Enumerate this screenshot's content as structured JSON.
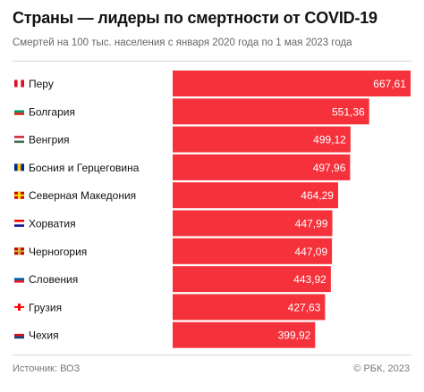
{
  "title": "Страны — лидеры по смертности от COVID-19",
  "subtitle": "Смертей на 100 тыс. населения с января 2020 года по 1 мая 2023 года",
  "source": "Источник: ВОЗ",
  "copyright": "© РБК, 2023",
  "chart_data": {
    "type": "bar",
    "orientation": "horizontal",
    "bar_color": "#f5313b",
    "categories": [
      "Перу",
      "Болгария",
      "Венгрия",
      "Босния и Герцеговина",
      "Северная Македония",
      "Хорватия",
      "Черногория",
      "Словения",
      "Грузия",
      "Чехия"
    ],
    "values": [
      667.61,
      551.36,
      499.12,
      497.96,
      464.29,
      447.99,
      447.09,
      443.92,
      427.63,
      399.92
    ],
    "value_labels": [
      "667,61",
      "551,36",
      "499,12",
      "497,96",
      "464,29",
      "447,99",
      "447,09",
      "443,92",
      "427,63",
      "399,92"
    ],
    "flags": [
      "peru-flag-icon",
      "bulgaria-flag-icon",
      "hungary-flag-icon",
      "bosnia-flag-icon",
      "north-macedonia-flag-icon",
      "croatia-flag-icon",
      "montenegro-flag-icon",
      "slovenia-flag-icon",
      "georgia-flag-icon",
      "czechia-flag-icon"
    ]
  }
}
